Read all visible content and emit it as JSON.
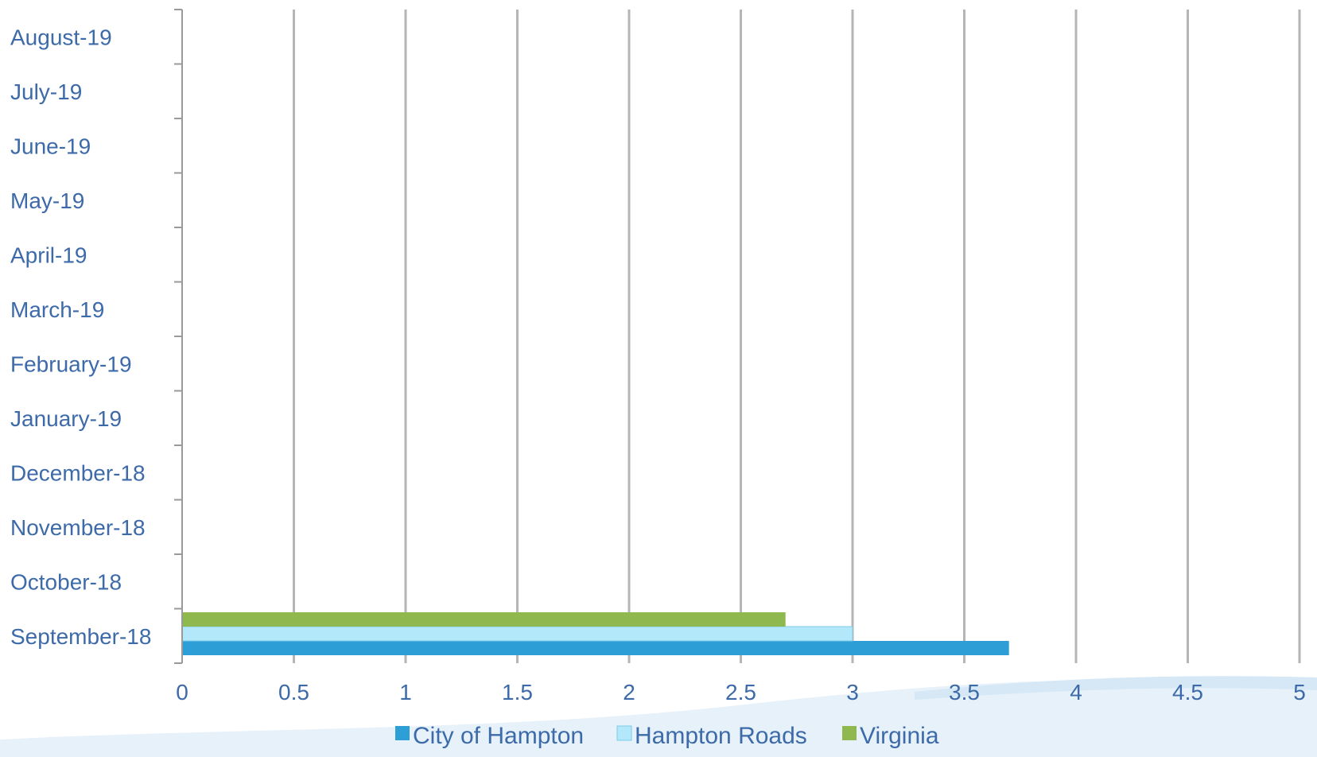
{
  "chart_data": {
    "type": "bar",
    "orientation": "horizontal",
    "title": "",
    "xlabel": "",
    "ylabel": "",
    "categories": [
      "September-18",
      "October-18",
      "November-18",
      "December-18",
      "January-19",
      "February-19",
      "March-19",
      "April-19",
      "May-19",
      "June-19",
      "July-19",
      "August-19"
    ],
    "xlim": [
      0,
      5
    ],
    "xticks": [
      "0",
      "0.5",
      "1",
      "1.5",
      "2",
      "2.5",
      "3",
      "3.5",
      "4",
      "4.5",
      "5"
    ],
    "grid": "vertical",
    "legend_position": "bottom",
    "series": [
      {
        "name": "City of Hampton",
        "color": "#2e9fd6",
        "values": [
          3.7,
          null,
          null,
          null,
          null,
          null,
          null,
          null,
          null,
          null,
          null,
          null
        ]
      },
      {
        "name": "Hampton Roads",
        "color": "#b3e8fb",
        "values": [
          3.0,
          null,
          null,
          null,
          null,
          null,
          null,
          null,
          null,
          null,
          null,
          null
        ]
      },
      {
        "name": "Virginia",
        "color": "#8fb84e",
        "values": [
          2.7,
          null,
          null,
          null,
          null,
          null,
          null,
          null,
          null,
          null,
          null,
          null
        ]
      }
    ]
  },
  "colors": {
    "text": "#3d6aa8",
    "grid": "#b5b5b5",
    "axis": "#9a9a9a",
    "wave": "#dfeef8"
  }
}
